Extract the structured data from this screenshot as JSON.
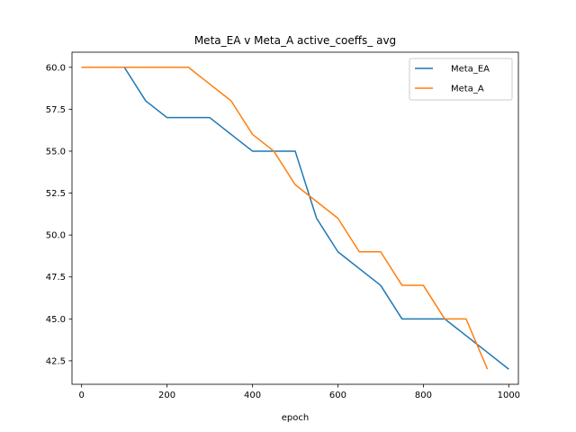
{
  "chart_data": {
    "type": "line",
    "title": "Meta_EA v Meta_A active_coeffs_ avg",
    "xlabel": "epoch",
    "ylabel": "",
    "xlim": [
      -22.5,
      1022.5
    ],
    "ylim": [
      41.1,
      60.9
    ],
    "xticks": [
      0,
      200,
      400,
      600,
      800,
      1000
    ],
    "yticks": [
      42.5,
      45.0,
      47.5,
      50.0,
      52.5,
      55.0,
      57.5,
      60.0
    ],
    "xtick_labels": [
      "0",
      "200",
      "400",
      "600",
      "800",
      "1000"
    ],
    "ytick_labels": [
      "42.5",
      "45.0",
      "47.5",
      "50.0",
      "52.5",
      "55.0",
      "57.5",
      "60.0"
    ],
    "grid": false,
    "legend_position": "top-right",
    "series": [
      {
        "name": "Meta_EA",
        "color": "#1f77b4",
        "x": [
          0,
          50,
          100,
          150,
          200,
          250,
          300,
          350,
          400,
          450,
          500,
          550,
          600,
          650,
          700,
          750,
          800,
          850,
          900,
          950,
          1000
        ],
        "y": [
          60,
          60,
          60,
          58,
          57,
          57,
          57,
          56,
          55,
          55,
          55,
          51,
          49,
          48,
          47,
          45,
          45,
          45,
          44,
          43,
          42
        ]
      },
      {
        "name": "Meta_A",
        "color": "#ff7f0e",
        "x": [
          0,
          50,
          100,
          150,
          200,
          250,
          300,
          350,
          400,
          450,
          500,
          550,
          600,
          650,
          700,
          750,
          800,
          850,
          900,
          950
        ],
        "y": [
          60,
          60,
          60,
          60,
          60,
          60,
          59,
          58,
          56,
          55,
          53,
          52,
          51,
          49,
          49,
          47,
          47,
          45,
          45,
          42
        ]
      }
    ]
  }
}
